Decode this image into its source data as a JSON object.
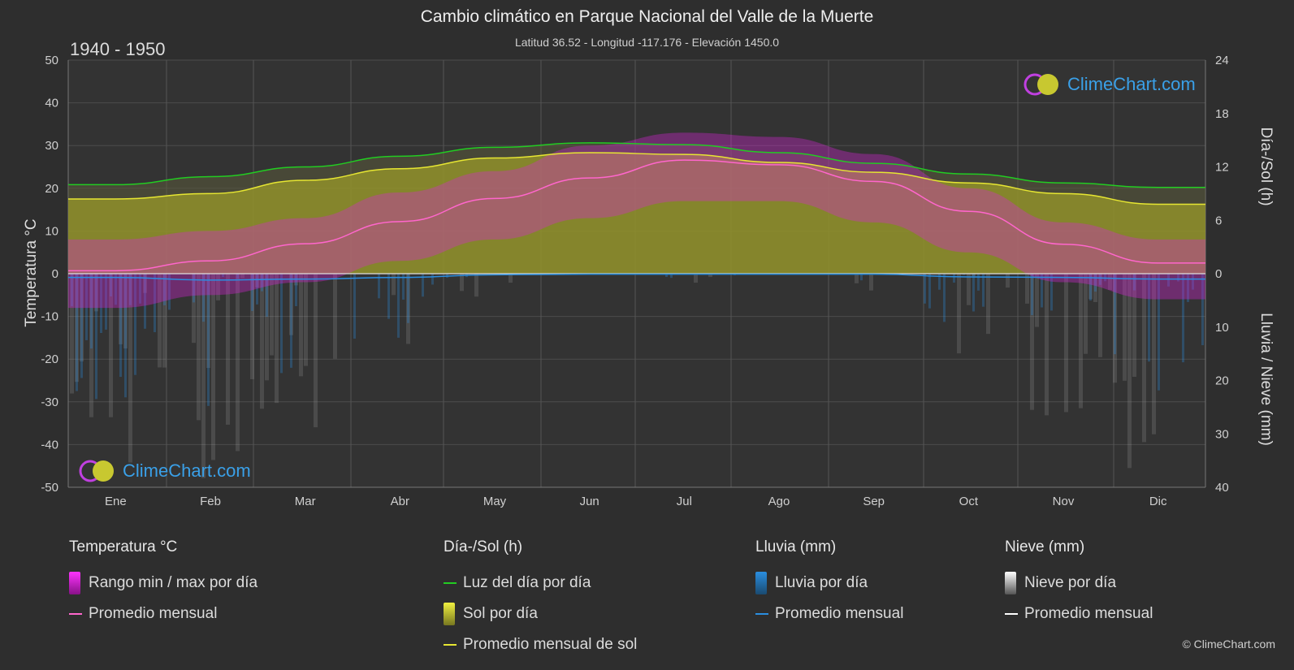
{
  "title": "Cambio climático en Parque Nacional del Valle de la Muerte",
  "subtitle": "Latitud 36.52 - Longitud -117.176 - Elevación 1450.0",
  "period": "1940 - 1950",
  "logo_text": "ClimeChart.com",
  "copyright": "© ClimeChart.com",
  "axes": {
    "left_label": "Temperatura °C",
    "right_top_label": "Día-/Sol (h)",
    "right_bottom_label": "Lluvia / Nieve (mm)"
  },
  "legend": {
    "temperature": {
      "header": "Temperatura °C",
      "range": "Rango min / max por día",
      "avg": "Promedio mensual"
    },
    "sun": {
      "header": "Día-/Sol (h)",
      "daylight": "Luz del día por día",
      "sun_per_day": "Sol por día",
      "sun_avg": "Promedio mensual de sol"
    },
    "rain": {
      "header": "Lluvia (mm)",
      "rain_per_day": "Lluvia por día",
      "avg": "Promedio mensual"
    },
    "snow": {
      "header": "Nieve (mm)",
      "snow_per_day": "Nieve por día",
      "avg": "Promedio mensual"
    }
  },
  "colors": {
    "background": "#2e2e2e",
    "daylight": "#22cc22",
    "sun_avg": "#e6e632",
    "temp_avg": "#ff66cc",
    "temp_range": "#dd22dd",
    "rain": "#2a8ee0",
    "snow": "#bbbbbb",
    "sun_fill": "#9a9a2a"
  },
  "chart_data": {
    "type": "line",
    "categories": [
      "Ene",
      "Feb",
      "Mar",
      "Abr",
      "May",
      "Jun",
      "Jul",
      "Ago",
      "Sep",
      "Oct",
      "Nov",
      "Dic"
    ],
    "left_axis": {
      "label": "Temperatura °C",
      "ticks": [
        50,
        40,
        30,
        20,
        10,
        0,
        -10,
        -20,
        -30,
        -40,
        -50
      ],
      "range": [
        -50,
        50
      ]
    },
    "right_axis_top": {
      "label": "Día-/Sol (h)",
      "ticks": [
        24,
        18,
        12,
        6,
        0
      ],
      "range": [
        0,
        24
      ]
    },
    "right_axis_bottom": {
      "label": "Lluvia / Nieve (mm)",
      "ticks": [
        0,
        10,
        20,
        30,
        40
      ],
      "range": [
        0,
        40
      ]
    },
    "series": [
      {
        "name": "Luz del día por día",
        "axis": "hours",
        "values": [
          10.0,
          10.9,
          12.0,
          13.2,
          14.2,
          14.7,
          14.5,
          13.6,
          12.4,
          11.2,
          10.2,
          9.7
        ]
      },
      {
        "name": "Promedio mensual de sol",
        "axis": "hours",
        "values": [
          8.4,
          9.0,
          10.5,
          11.8,
          13.0,
          13.6,
          13.4,
          12.5,
          11.4,
          10.2,
          9.0,
          7.8
        ]
      },
      {
        "name": "Promedio mensual",
        "group": "Temperatura °C",
        "axis": "temp",
        "values": [
          0.7,
          3.0,
          7.0,
          12.2,
          17.6,
          22.4,
          26.6,
          25.5,
          21.6,
          14.6,
          6.9,
          2.5
        ]
      },
      {
        "name": "Promedio mensual",
        "group": "Lluvia (mm)",
        "axis": "precip",
        "values": [
          0.7,
          1.2,
          1.0,
          0.7,
          0.2,
          0.1,
          0.1,
          0.1,
          0.1,
          0.6,
          0.7,
          1.0
        ]
      },
      {
        "name": "Promedio mensual",
        "group": "Nieve (mm)",
        "axis": "precip",
        "values": [
          0,
          0,
          0,
          0,
          0,
          0,
          0,
          0,
          0,
          0,
          0,
          0
        ]
      }
    ],
    "temp_range_max": [
      8,
      10,
      13,
      19,
      24,
      30,
      33,
      32,
      28,
      20,
      12,
      8
    ],
    "temp_range_min": [
      -8,
      -5,
      -2,
      3,
      8,
      13,
      17,
      17,
      12,
      5,
      -2,
      -6
    ],
    "grid": true
  }
}
